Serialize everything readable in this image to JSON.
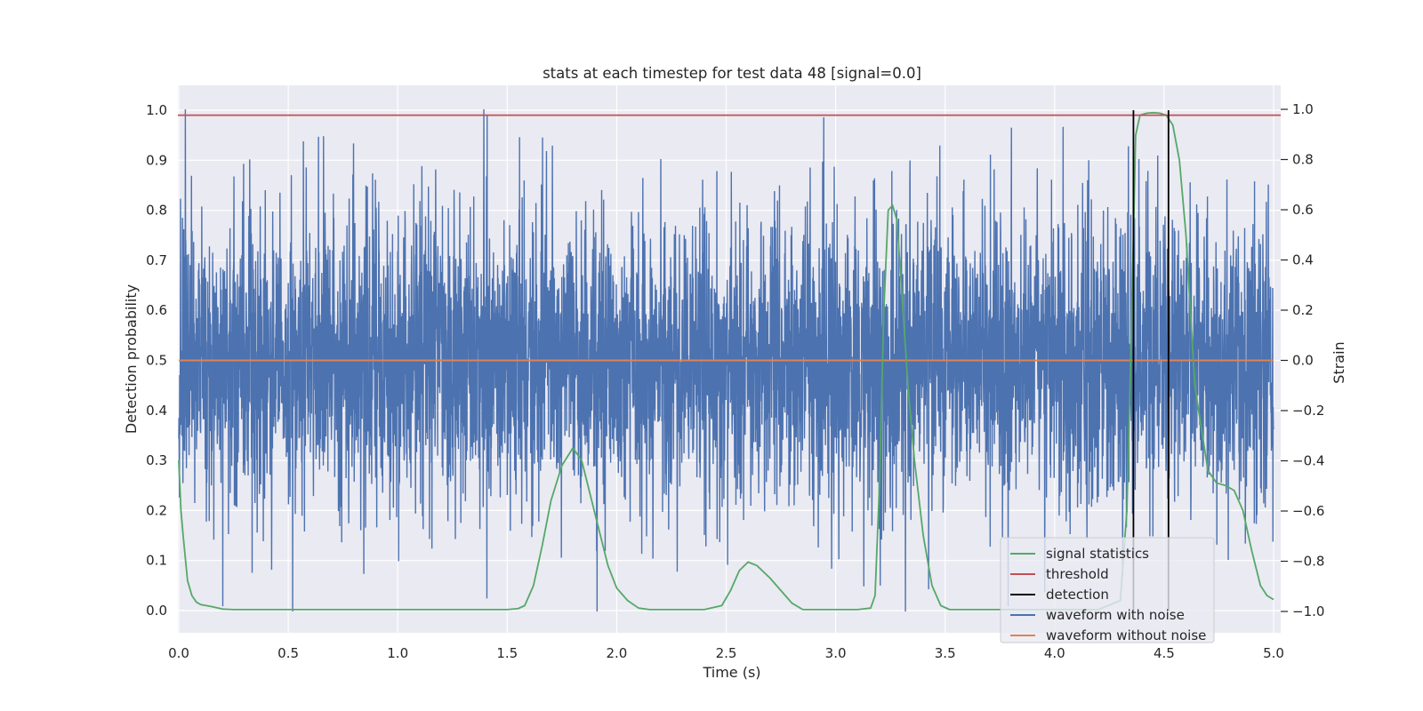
{
  "chart_data": {
    "type": "line",
    "title": "stats at each timestep for test data 48 [signal=0.0]",
    "xlabel": "Time (s)",
    "ylabel": "Detection probability",
    "y2label": "Strain",
    "xlim": [
      0.0,
      5.0
    ],
    "ylim": [
      -0.045,
      1.05
    ],
    "y2lim": [
      -1.1,
      1.1
    ],
    "xticks": [
      "0.0",
      "0.5",
      "1.0",
      "1.5",
      "2.0",
      "2.5",
      "3.0",
      "3.5",
      "4.0",
      "4.5",
      "5.0"
    ],
    "yticks": [
      "0.0",
      "0.1",
      "0.2",
      "0.3",
      "0.4",
      "0.5",
      "0.6",
      "0.7",
      "0.8",
      "0.9",
      "1.0"
    ],
    "y2ticks": [
      "−1.0",
      "−0.8",
      "−0.6",
      "−0.4",
      "−0.2",
      "0.0",
      "0.2",
      "0.4",
      "0.6",
      "0.8",
      "1.0"
    ],
    "grid": true,
    "legend_position": "lower-right",
    "series": [
      {
        "name": "signal statistics",
        "axis": "left",
        "color": "#55a868",
        "x": [
          0.0,
          0.01,
          0.02,
          0.04,
          0.06,
          0.08,
          0.1,
          0.15,
          0.2,
          0.25,
          0.5,
          1.0,
          1.5,
          1.55,
          1.58,
          1.62,
          1.66,
          1.7,
          1.75,
          1.8,
          1.84,
          1.88,
          1.92,
          1.96,
          2.0,
          2.05,
          2.1,
          2.15,
          2.2,
          2.4,
          2.48,
          2.52,
          2.56,
          2.6,
          2.64,
          2.7,
          2.75,
          2.8,
          2.85,
          3.0,
          3.1,
          3.16,
          3.18,
          3.2,
          3.22,
          3.24,
          3.26,
          3.28,
          3.3,
          3.33,
          3.36,
          3.4,
          3.44,
          3.48,
          3.52,
          3.6,
          4.0,
          4.2,
          4.3,
          4.33,
          4.35,
          4.37,
          4.39,
          4.42,
          4.45,
          4.48,
          4.51,
          4.54,
          4.57,
          4.6,
          4.64,
          4.7,
          4.74,
          4.78,
          4.82,
          4.86,
          4.9,
          4.94,
          4.97,
          5.0
        ],
        "values": [
          0.3,
          0.2,
          0.15,
          0.06,
          0.03,
          0.017,
          0.012,
          0.008,
          0.003,
          0.002,
          0.002,
          0.002,
          0.002,
          0.004,
          0.01,
          0.05,
          0.13,
          0.22,
          0.29,
          0.325,
          0.3,
          0.23,
          0.16,
          0.09,
          0.045,
          0.02,
          0.005,
          0.002,
          0.002,
          0.002,
          0.01,
          0.04,
          0.08,
          0.097,
          0.09,
          0.065,
          0.04,
          0.015,
          0.002,
          0.002,
          0.002,
          0.005,
          0.03,
          0.25,
          0.6,
          0.8,
          0.81,
          0.78,
          0.65,
          0.45,
          0.3,
          0.15,
          0.05,
          0.01,
          0.002,
          0.002,
          0.002,
          0.002,
          0.02,
          0.2,
          0.55,
          0.95,
          0.99,
          0.994,
          0.995,
          0.994,
          0.99,
          0.97,
          0.9,
          0.75,
          0.45,
          0.28,
          0.255,
          0.25,
          0.24,
          0.2,
          0.12,
          0.05,
          0.03,
          0.022
        ]
      },
      {
        "name": "threshold",
        "axis": "left",
        "color": "#c44e52",
        "x": [
          0.0,
          5.0
        ],
        "values": [
          0.99,
          0.99
        ]
      },
      {
        "name": "detection",
        "axis": "left",
        "color": "#000000",
        "x": [
          4.36,
          4.52
        ],
        "ymin": [
          0.0,
          0.0
        ],
        "ymax": [
          1.0,
          1.0
        ]
      },
      {
        "name": "waveform with noise",
        "axis": "right",
        "color": "#4c72b0",
        "note_noise": {
          "n": 5000,
          "amplitude": 0.28,
          "range": [
            -1.0,
            1.0
          ],
          "peaks": [
            [
              0.03,
              1.0
            ],
            [
              0.52,
              -1.0
            ]
          ]
        }
      },
      {
        "name": "waveform without noise",
        "axis": "right",
        "color": "#dd8452",
        "x": [
          0.0,
          5.0
        ],
        "values": [
          0.0,
          0.0
        ]
      }
    ]
  }
}
